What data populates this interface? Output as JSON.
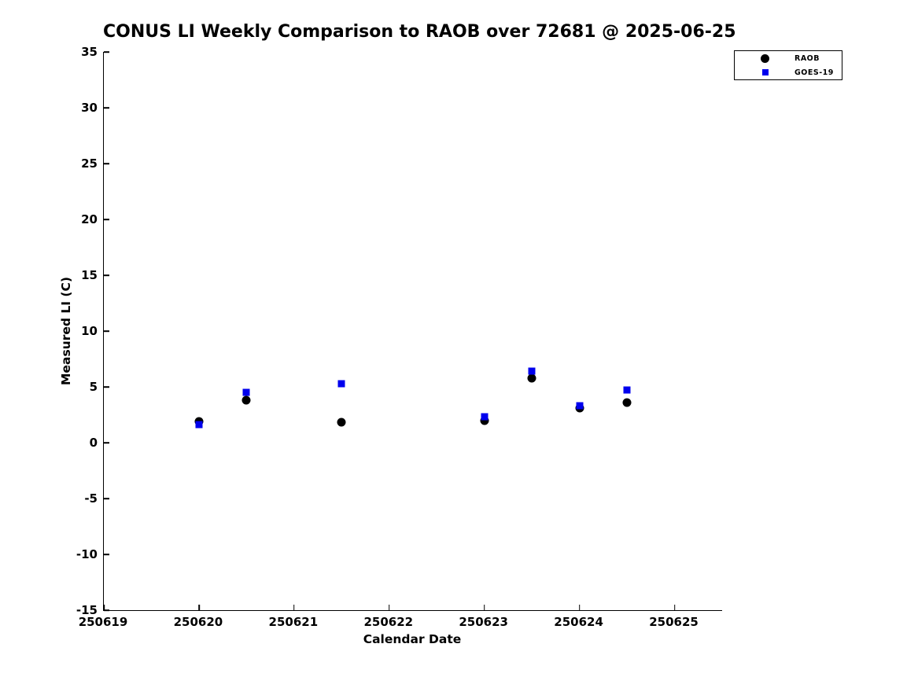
{
  "chart_data": {
    "type": "scatter",
    "title": "CONUS LI Weekly Comparison to RAOB over 72681 @ 2025-06-25",
    "xlabel": "Calendar Date",
    "ylabel": "Measured LI (C)",
    "xlim": [
      250619,
      250625.5
    ],
    "ylim": [
      -15,
      35
    ],
    "x_ticks": [
      250619,
      250620,
      250621,
      250622,
      250623,
      250624,
      250625
    ],
    "y_ticks": [
      -15,
      -10,
      -5,
      0,
      5,
      10,
      15,
      20,
      25,
      30,
      35
    ],
    "grid": false,
    "legend_position": "top-right",
    "background_color": "#ffffff",
    "axis_color": "#000000",
    "series": [
      {
        "name": "RAOB",
        "marker": "circle",
        "color": "#000000",
        "points": [
          [
            250620.0,
            1.9
          ],
          [
            250620.5,
            3.8
          ],
          [
            250621.5,
            1.8
          ],
          [
            250623.0,
            2.0
          ],
          [
            250623.5,
            5.8
          ],
          [
            250624.0,
            3.1
          ],
          [
            250624.5,
            3.6
          ]
        ]
      },
      {
        "name": "GOES-19",
        "marker": "square",
        "color": "#0000ee",
        "points": [
          [
            250620.0,
            1.6
          ],
          [
            250620.5,
            4.5
          ],
          [
            250621.5,
            5.3
          ],
          [
            250623.0,
            2.3
          ],
          [
            250623.5,
            6.4
          ],
          [
            250624.0,
            3.3
          ],
          [
            250624.5,
            4.7
          ]
        ]
      }
    ]
  }
}
